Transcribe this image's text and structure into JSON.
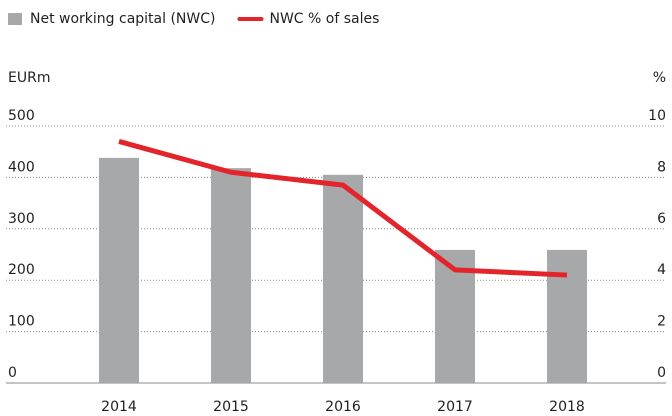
{
  "chart_data": {
    "type": "bar",
    "y_label": "EURm",
    "y2_label": "%",
    "categories": [
      "2014",
      "2015",
      "2016",
      "2017",
      "2018"
    ],
    "series": [
      {
        "name": "Net working capital (NWC)",
        "type": "bar",
        "color": "#a7a8aa",
        "values": [
          438,
          418,
          405,
          259,
          259
        ]
      },
      {
        "name": "NWC % of sales",
        "type": "line",
        "axis": "y2",
        "color": "#e3242b",
        "values": [
          9.4,
          8.2,
          7.7,
          4.4,
          4.2
        ]
      }
    ],
    "ylim": [
      0,
      500
    ],
    "yticks": [
      0,
      100,
      200,
      300,
      400,
      500
    ],
    "y2lim": [
      0,
      10
    ],
    "y2ticks": [
      0,
      2,
      4,
      6,
      8,
      10
    ],
    "grid": true
  }
}
